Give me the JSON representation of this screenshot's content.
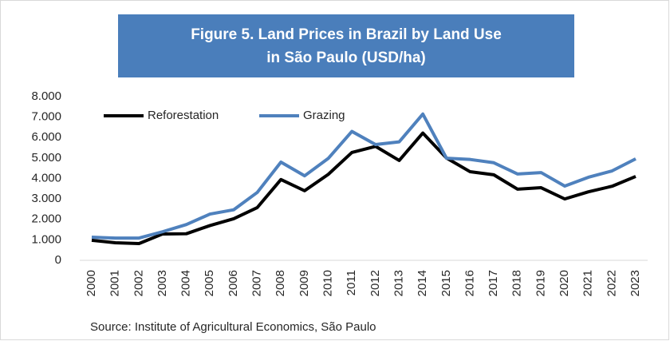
{
  "chart_data": {
    "type": "line",
    "title": [
      "Figure 5. Land Prices in Brazil by Land Use",
      "in São Paulo (USD/ha)"
    ],
    "source": "Source: Institute of Agricultural Economics, São Paulo",
    "categories": [
      "2000",
      "2001",
      "2002",
      "2003",
      "2004",
      "2005",
      "2006",
      "2007",
      "2008",
      "2009",
      "2010",
      "2011",
      "2012",
      "2013",
      "2014",
      "2015",
      "2016",
      "2017",
      "2018",
      "2019",
      "2020",
      "2021",
      "2022",
      "2023"
    ],
    "series": [
      {
        "name": "Reforestation",
        "color": "#000000",
        "values": [
          980,
          860,
          820,
          1290,
          1300,
          1700,
          2030,
          2580,
          3950,
          3400,
          4200,
          5270,
          5570,
          4880,
          6220,
          5000,
          4330,
          4180,
          3480,
          3550,
          3000,
          3350,
          3620,
          4100
        ]
      },
      {
        "name": "Grazing",
        "color": "#4f81bd",
        "values": [
          1130,
          1090,
          1090,
          1400,
          1750,
          2260,
          2470,
          3320,
          4800,
          4130,
          4980,
          6300,
          5660,
          5790,
          7150,
          4990,
          4930,
          4770,
          4220,
          4290,
          3630,
          4060,
          4370,
          4960
        ]
      }
    ],
    "ylim": [
      0,
      8000
    ],
    "yticks": [
      0,
      {
        "value": 1000,
        "label": "1.000"
      },
      {
        "value": 2000,
        "label": "2.000"
      },
      {
        "value": 3000,
        "label": "3.000"
      },
      {
        "value": 4000,
        "label": "4.000"
      },
      {
        "value": 5000,
        "label": "5.000"
      },
      {
        "value": 6000,
        "label": "6.000"
      },
      {
        "value": 7000,
        "label": "7.000"
      },
      {
        "value": 8000,
        "label": "8.000"
      }
    ],
    "grid": false,
    "legend": "top-left",
    "title_color": "#4a7ebb"
  }
}
